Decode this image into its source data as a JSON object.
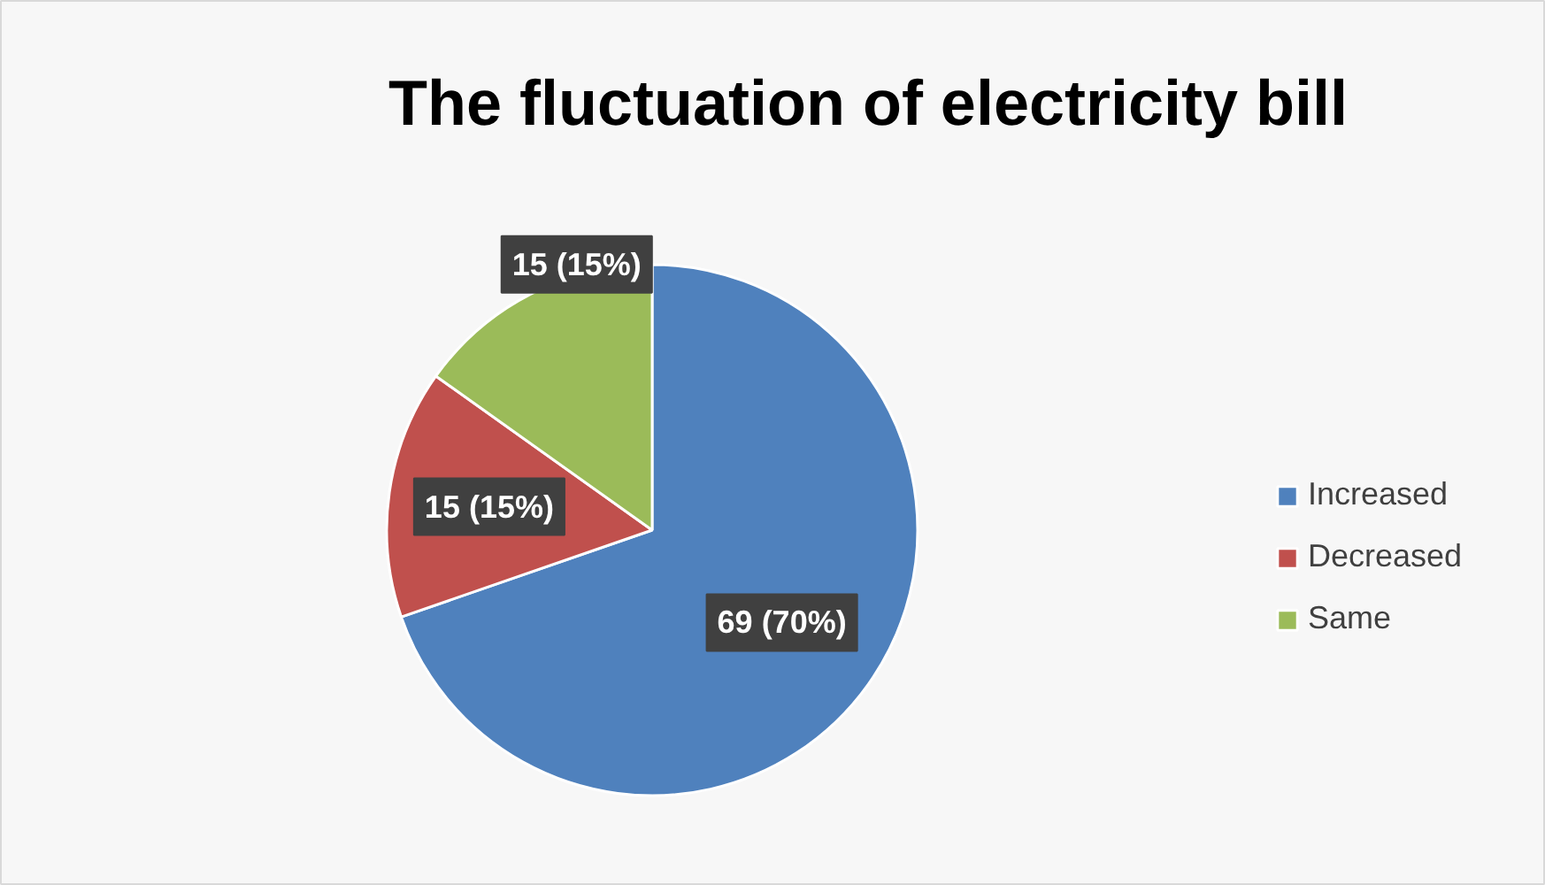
{
  "chart_data": {
    "type": "pie",
    "title": "The fluctuation of electricity bill",
    "categories": [
      "Increased",
      "Decreased",
      "Same"
    ],
    "values": [
      69,
      15,
      15
    ],
    "colors": [
      "#4f81bd",
      "#c0504d",
      "#9bbb59"
    ],
    "value_labels": [
      "69 (70%)",
      "15 (15%)",
      "15 (15%)"
    ],
    "legend": "right"
  }
}
